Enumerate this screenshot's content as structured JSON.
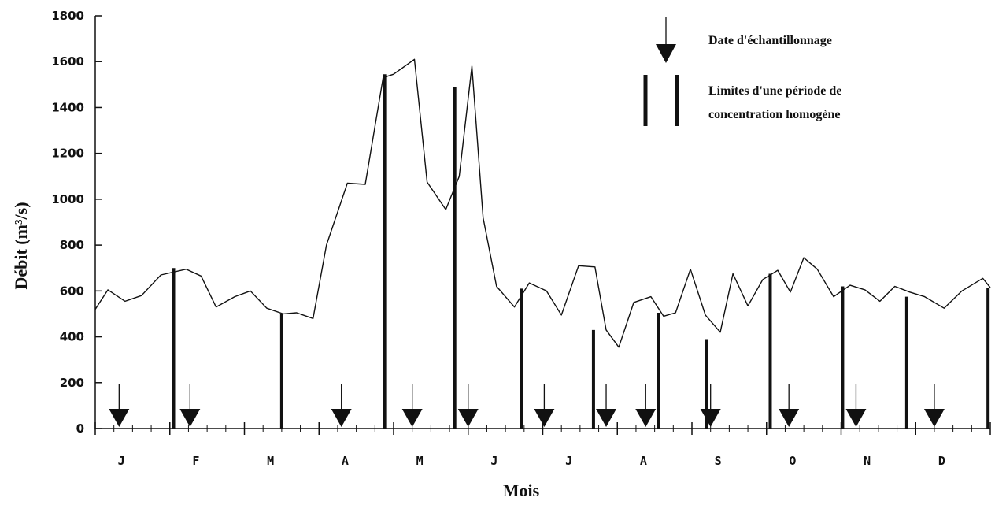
{
  "chart_data": {
    "type": "line",
    "xlabel": "Mois",
    "ylabel": "Débit (m³/s)",
    "ylim": [
      0,
      1800
    ],
    "yticks": [
      0,
      200,
      400,
      600,
      800,
      1000,
      1200,
      1400,
      1600,
      1800
    ],
    "month_labels": [
      "J",
      "F",
      "M",
      "A",
      "M",
      "J",
      "J",
      "A",
      "S",
      "O",
      "N",
      "D"
    ],
    "x_month_range": [
      0,
      12
    ],
    "grid": false,
    "series": [
      {
        "x": [
          0.0,
          0.17,
          0.4,
          0.62,
          0.88,
          1.22,
          1.42,
          1.62,
          1.87,
          2.08,
          2.3,
          2.52,
          2.7,
          2.92,
          3.1,
          3.38,
          3.62,
          3.86,
          4.0,
          4.28,
          4.45,
          4.7,
          4.88,
          5.05,
          5.2,
          5.38,
          5.62,
          5.82,
          6.05,
          6.25,
          6.48,
          6.7,
          6.85,
          7.02,
          7.22,
          7.45,
          7.62,
          7.78,
          7.98,
          8.18,
          8.38,
          8.55,
          8.75,
          8.95,
          9.15,
          9.32,
          9.5,
          9.68,
          9.9,
          10.12,
          10.32,
          10.52,
          10.72,
          10.92,
          11.12,
          11.38,
          11.62,
          11.9,
          12.0
        ],
        "y": [
          520,
          605,
          555,
          580,
          670,
          695,
          665,
          530,
          575,
          600,
          525,
          500,
          505,
          480,
          800,
          1070,
          1065,
          1530,
          1545,
          1610,
          1075,
          955,
          1100,
          1580,
          920,
          620,
          530,
          635,
          600,
          495,
          710,
          705,
          430,
          355,
          550,
          575,
          490,
          505,
          695,
          495,
          420,
          675,
          535,
          650,
          690,
          595,
          745,
          695,
          575,
          625,
          605,
          555,
          620,
          595,
          575,
          525,
          600,
          655,
          615
        ]
      }
    ],
    "sampling_dates": [
      0.32,
      1.27,
      3.3,
      4.25,
      5.0,
      6.02,
      6.85,
      7.38,
      8.25,
      9.3,
      10.2,
      11.25
    ],
    "homogeneous_period_limits": [
      {
        "x": 1.05,
        "y": 700
      },
      {
        "x": 2.5,
        "y": 500
      },
      {
        "x": 3.88,
        "y": 1545
      },
      {
        "x": 4.82,
        "y": 1490
      },
      {
        "x": 5.72,
        "y": 610
      },
      {
        "x": 6.68,
        "y": 430
      },
      {
        "x": 7.55,
        "y": 505
      },
      {
        "x": 8.2,
        "y": 390
      },
      {
        "x": 9.05,
        "y": 675
      },
      {
        "x": 10.02,
        "y": 620
      },
      {
        "x": 10.88,
        "y": 575
      },
      {
        "x": 11.97,
        "y": 615
      }
    ],
    "legend": {
      "position": "top-right",
      "sampling_label": "Date d'échantillonnage",
      "limits_label_line1": "Limites d'une période de",
      "limits_label_line2": "concentration homogène"
    }
  }
}
